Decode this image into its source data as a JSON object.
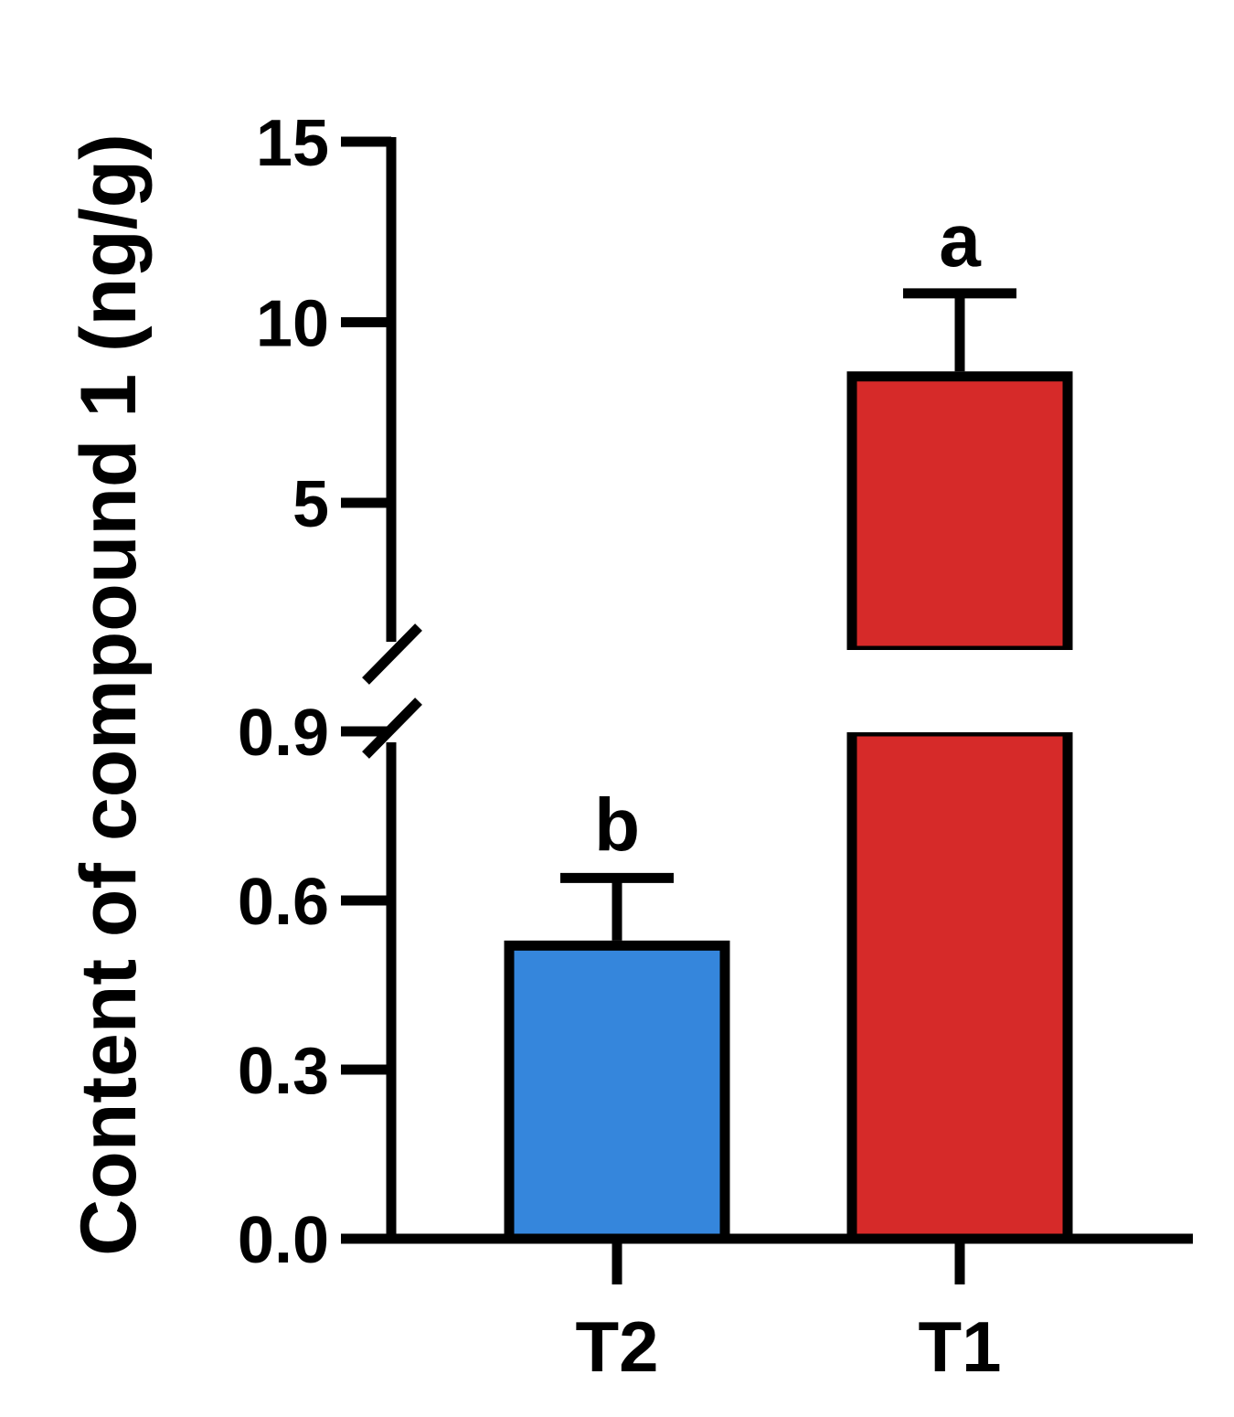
{
  "chart_data": {
    "type": "bar",
    "title": "",
    "xlabel": "",
    "ylabel": "Content of compound 1 (ng/g)",
    "categories": [
      "T2",
      "T1"
    ],
    "values": [
      0.52,
      8.5
    ],
    "error_upper": [
      0.64,
      10.8
    ],
    "significance": [
      "b",
      "a"
    ],
    "colors": [
      "#3586DC",
      "#D62A29"
    ],
    "y_axis_broken": true,
    "y_segments": [
      {
        "range": [
          0,
          0.9
        ],
        "ticks": [
          0.0,
          0.3,
          0.6,
          0.9
        ],
        "tick_labels": [
          "0.0",
          "0.3",
          "0.6",
          "0.9"
        ]
      },
      {
        "range": [
          2,
          15
        ],
        "ticks": [
          5,
          10,
          15
        ],
        "tick_labels": [
          "5",
          "10",
          "15"
        ]
      }
    ],
    "grid": false,
    "legend": "none"
  }
}
